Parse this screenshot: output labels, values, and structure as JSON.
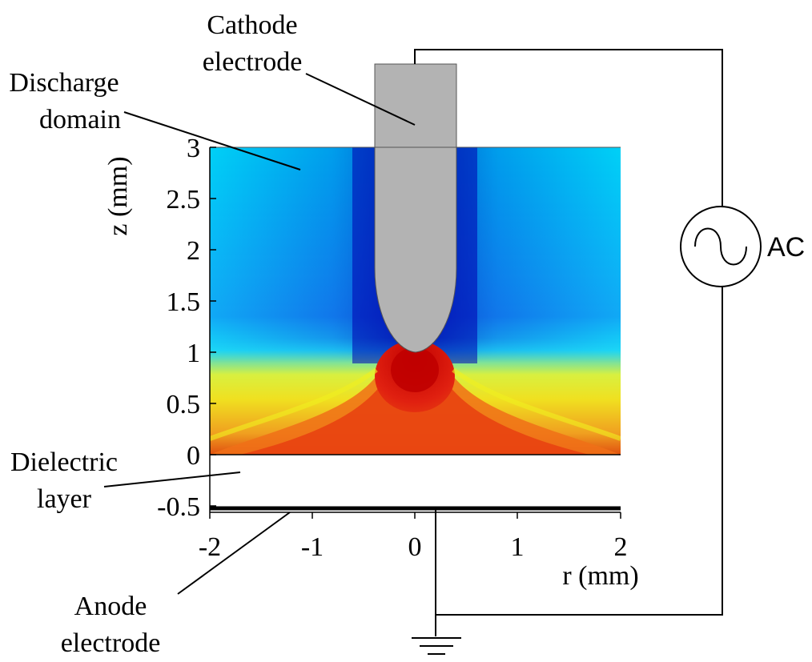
{
  "labels": {
    "cathode_line1": "Cathode",
    "cathode_line2": "electrode",
    "discharge_line1": "Discharge",
    "discharge_line2": "domain",
    "dielectric_line1": "Dielectric",
    "dielectric_line2": "layer",
    "anode_line1": "Anode",
    "anode_line2": "electrode",
    "ac_source": "AC"
  },
  "axes": {
    "y_label": "z (mm)",
    "x_label": "r (mm)",
    "y_ticks": [
      "3",
      "2.5",
      "2",
      "1.5",
      "1",
      "0.5",
      "0",
      "-0.5"
    ],
    "x_ticks": [
      "-2",
      "-1",
      "0",
      "1",
      "2"
    ],
    "x_range": [
      -2,
      2
    ],
    "y_range": [
      -0.5,
      3
    ]
  },
  "colors": {
    "cathode_fill": "#b3b3b3",
    "field_low": "#00007f",
    "field_mid": "#00d8ff",
    "field_high": "#c00000",
    "wire": "#000000"
  }
}
